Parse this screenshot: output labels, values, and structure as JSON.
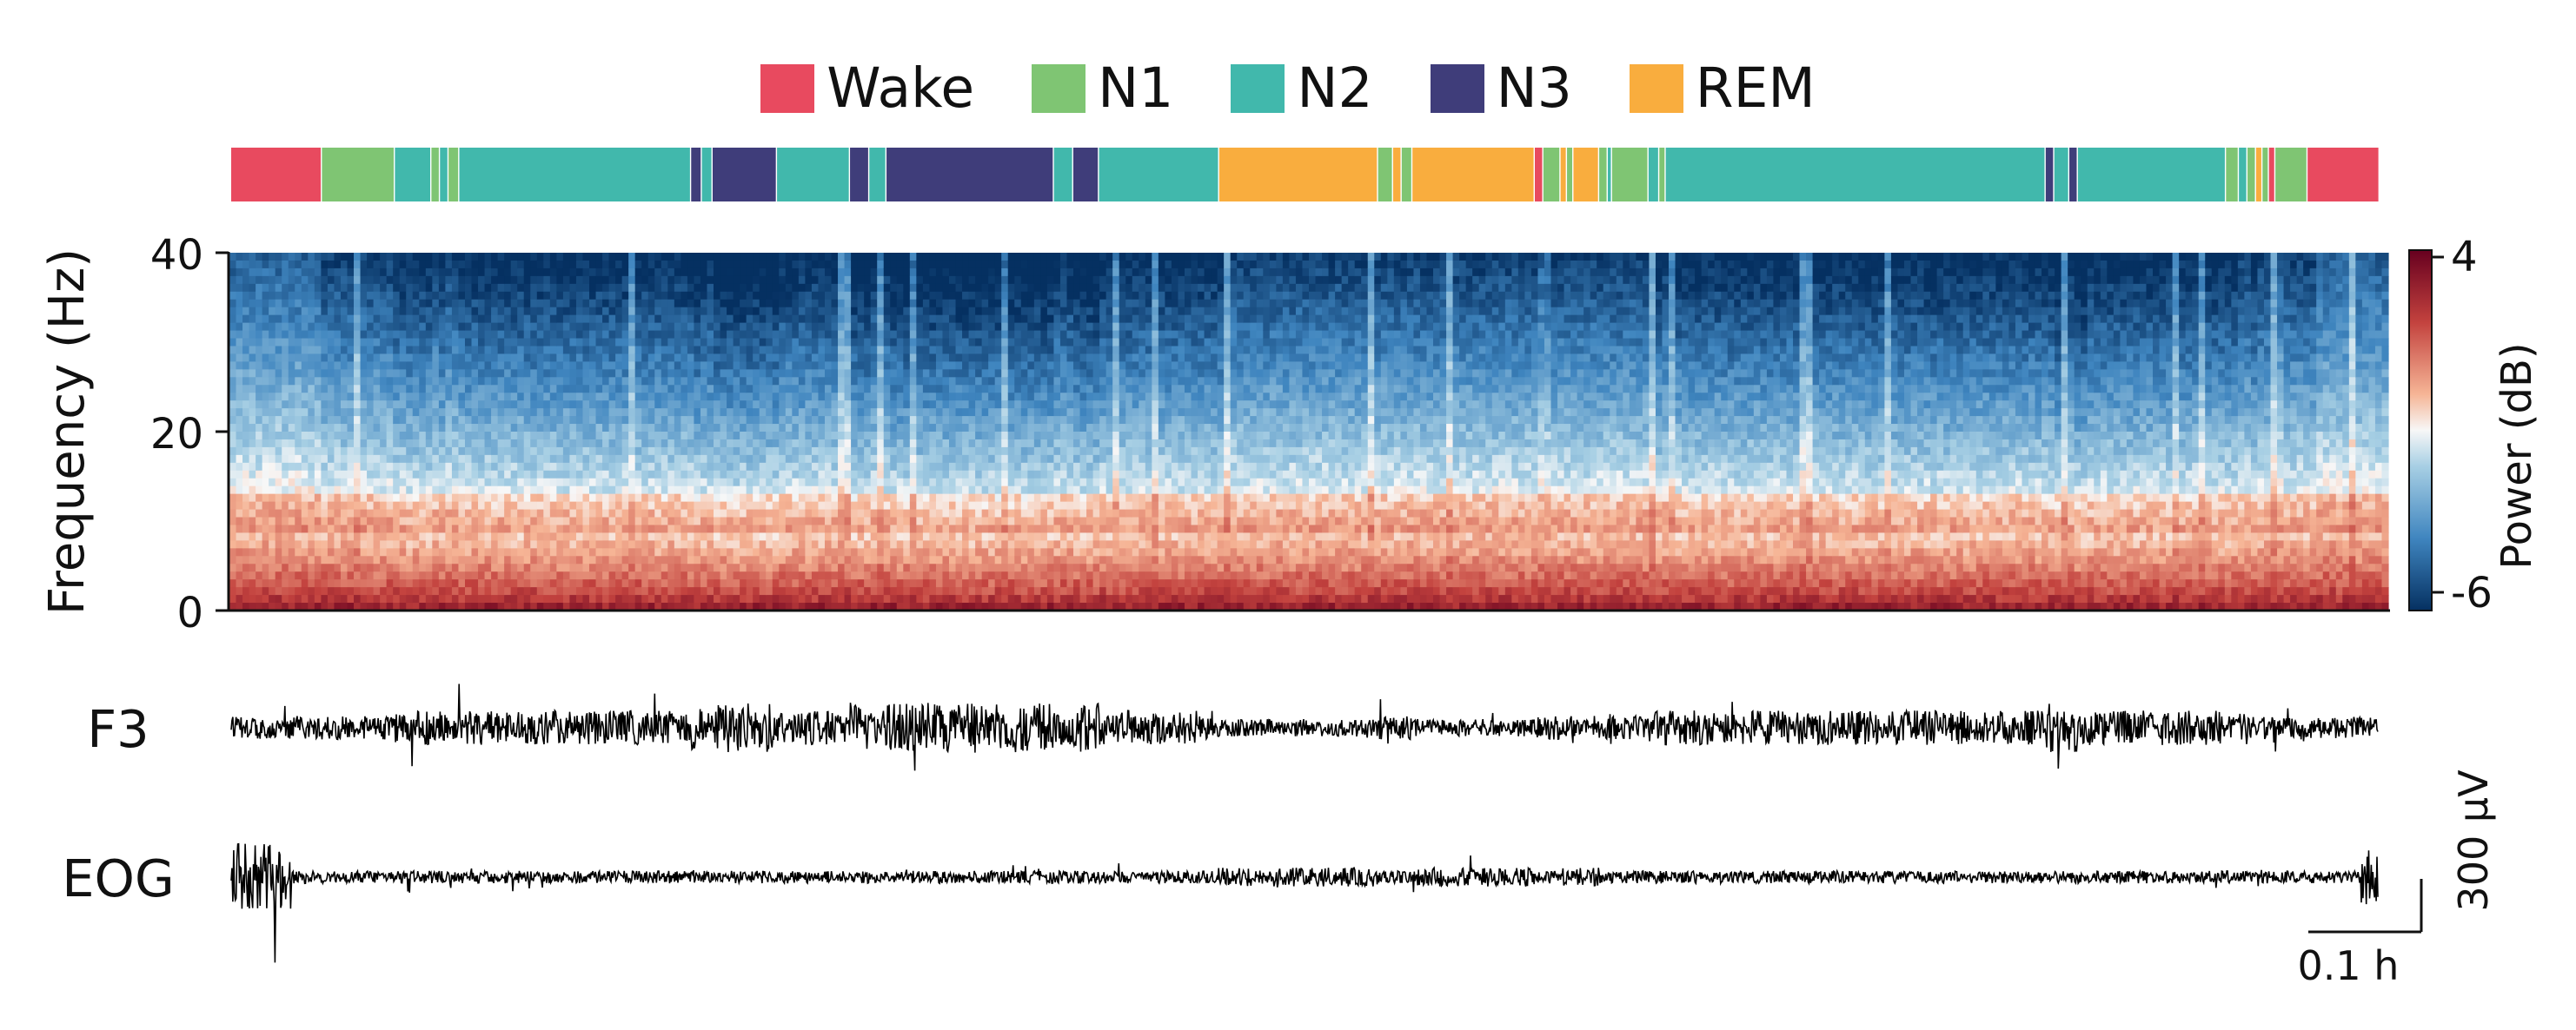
{
  "legend": {
    "items": [
      {
        "label": "Wake",
        "color": "#e84a5f"
      },
      {
        "label": "N1",
        "color": "#7fc573"
      },
      {
        "label": "N2",
        "color": "#41b8ac"
      },
      {
        "label": "N3",
        "color": "#3f3d7a"
      },
      {
        "label": "REM",
        "color": "#f9ad3e"
      }
    ]
  },
  "chart_data": [
    {
      "type": "hypnogram",
      "stage_order": [
        "Wake",
        "N1",
        "N2",
        "N3",
        "REM"
      ],
      "x_range_h": [
        0,
        1.0
      ],
      "segments": [
        {
          "stage": "Wake",
          "start": 0.0,
          "end": 0.042
        },
        {
          "stage": "N1",
          "start": 0.042,
          "end": 0.076
        },
        {
          "stage": "N2",
          "start": 0.076,
          "end": 0.093
        },
        {
          "stage": "N1",
          "start": 0.093,
          "end": 0.097
        },
        {
          "stage": "N2",
          "start": 0.097,
          "end": 0.101
        },
        {
          "stage": "N1",
          "start": 0.101,
          "end": 0.106
        },
        {
          "stage": "N2",
          "start": 0.106,
          "end": 0.214
        },
        {
          "stage": "N3",
          "start": 0.214,
          "end": 0.219
        },
        {
          "stage": "N2",
          "start": 0.219,
          "end": 0.224
        },
        {
          "stage": "N3",
          "start": 0.224,
          "end": 0.254
        },
        {
          "stage": "N2",
          "start": 0.254,
          "end": 0.288
        },
        {
          "stage": "N3",
          "start": 0.288,
          "end": 0.297
        },
        {
          "stage": "N2",
          "start": 0.297,
          "end": 0.305
        },
        {
          "stage": "N3",
          "start": 0.305,
          "end": 0.383
        },
        {
          "stage": "N2",
          "start": 0.383,
          "end": 0.392
        },
        {
          "stage": "N3",
          "start": 0.392,
          "end": 0.404
        },
        {
          "stage": "N2",
          "start": 0.404,
          "end": 0.46
        },
        {
          "stage": "REM",
          "start": 0.46,
          "end": 0.534
        },
        {
          "stage": "N1",
          "start": 0.534,
          "end": 0.541
        },
        {
          "stage": "REM",
          "start": 0.541,
          "end": 0.545
        },
        {
          "stage": "N1",
          "start": 0.545,
          "end": 0.55
        },
        {
          "stage": "REM",
          "start": 0.55,
          "end": 0.607
        },
        {
          "stage": "Wake",
          "start": 0.607,
          "end": 0.611
        },
        {
          "stage": "N1",
          "start": 0.611,
          "end": 0.619
        },
        {
          "stage": "REM",
          "start": 0.619,
          "end": 0.622
        },
        {
          "stage": "N1",
          "start": 0.622,
          "end": 0.625
        },
        {
          "stage": "REM",
          "start": 0.625,
          "end": 0.637
        },
        {
          "stage": "N1",
          "start": 0.637,
          "end": 0.641
        },
        {
          "stage": "N2",
          "start": 0.641,
          "end": 0.643
        },
        {
          "stage": "N1",
          "start": 0.643,
          "end": 0.66
        },
        {
          "stage": "N2",
          "start": 0.66,
          "end": 0.665
        },
        {
          "stage": "N1",
          "start": 0.665,
          "end": 0.668
        },
        {
          "stage": "N2",
          "start": 0.668,
          "end": 0.845
        },
        {
          "stage": "N3",
          "start": 0.845,
          "end": 0.849
        },
        {
          "stage": "N2",
          "start": 0.849,
          "end": 0.856
        },
        {
          "stage": "N3",
          "start": 0.856,
          "end": 0.86
        },
        {
          "stage": "N2",
          "start": 0.86,
          "end": 0.929
        },
        {
          "stage": "N1",
          "start": 0.929,
          "end": 0.935
        },
        {
          "stage": "N2",
          "start": 0.935,
          "end": 0.939
        },
        {
          "stage": "N1",
          "start": 0.939,
          "end": 0.943
        },
        {
          "stage": "REM",
          "start": 0.943,
          "end": 0.946
        },
        {
          "stage": "N1",
          "start": 0.946,
          "end": 0.949
        },
        {
          "stage": "Wake",
          "start": 0.949,
          "end": 0.952
        },
        {
          "stage": "N1",
          "start": 0.952,
          "end": 0.967
        },
        {
          "stage": "Wake",
          "start": 0.967,
          "end": 1.0
        }
      ]
    },
    {
      "type": "heatmap",
      "ylabel": "Frequency (Hz)",
      "ylim": [
        0,
        40
      ],
      "yticks": [
        0,
        20,
        40
      ],
      "colorbar": {
        "label": "Power (dB)",
        "ticks": [
          "4",
          "-6"
        ],
        "range": [
          -6,
          4
        ],
        "colormap": "RdBu_r"
      }
    },
    {
      "type": "line",
      "channels": [
        {
          "name": "F3",
          "amplitude_uV": 80
        },
        {
          "name": "EOG",
          "amplitude_uV": 40
        }
      ],
      "scale_bar": {
        "amplitude_label": "300 µV",
        "time_label": "0.1 h"
      }
    }
  ]
}
